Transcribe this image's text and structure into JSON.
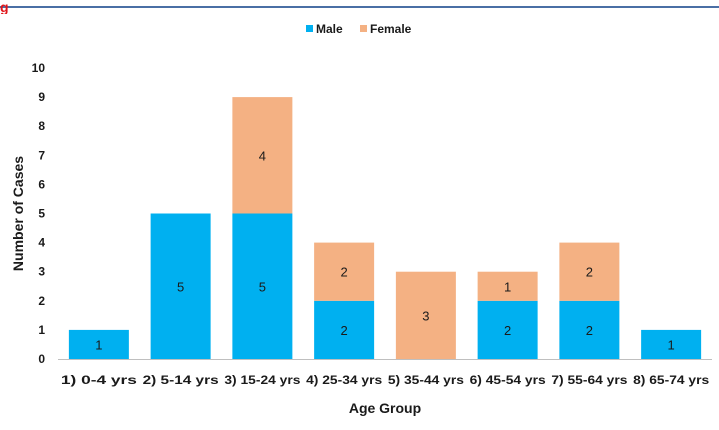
{
  "header": {
    "corner_mark": "g"
  },
  "chart_data": {
    "type": "bar",
    "stacked": true,
    "title": "",
    "xlabel": "Age Group",
    "ylabel": "Number of Cases",
    "ylim": [
      0,
      10
    ],
    "yticks": [
      0,
      1,
      2,
      3,
      4,
      5,
      6,
      7,
      8,
      9,
      10
    ],
    "grid": false,
    "legend": "top-center",
    "categories": [
      "1) 0-4 yrs",
      "2) 5-14 yrs",
      "3) 15-24 yrs",
      "4) 25-34 yrs",
      "5) 35-44 yrs",
      "6) 45-54 yrs",
      "7) 55-64 yrs",
      "8) 65-74 yrs"
    ],
    "series": [
      {
        "name": "Male",
        "color": "#00b0f0",
        "values": [
          1,
          5,
          5,
          2,
          0,
          2,
          2,
          1
        ]
      },
      {
        "name": "Female",
        "color": "#f4b183",
        "values": [
          0,
          0,
          4,
          2,
          3,
          1,
          2,
          0
        ]
      }
    ]
  }
}
